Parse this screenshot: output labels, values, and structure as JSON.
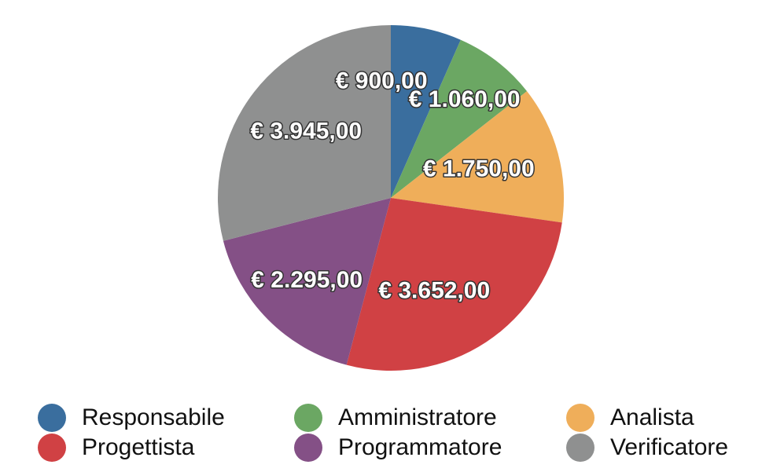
{
  "chart_data": {
    "type": "pie",
    "categories": [
      "Responsabile",
      "Amministratore",
      "Analista",
      "Progettista",
      "Programmatore",
      "Verificatore"
    ],
    "values": [
      900,
      1060,
      1750,
      3652,
      2295,
      3945
    ],
    "data_labels": [
      "€ 900,00",
      "€ 1.060,00",
      "€ 1.750,00",
      "€ 3.652,00",
      "€ 2.295,00",
      "€ 3.945,00"
    ],
    "colors": [
      "#3a6e9e",
      "#6ba763",
      "#efae5a",
      "#d04144",
      "#845086",
      "#8f9090"
    ],
    "start_angle": "12 o'clock, clockwise",
    "legend_placement": "bottom"
  }
}
